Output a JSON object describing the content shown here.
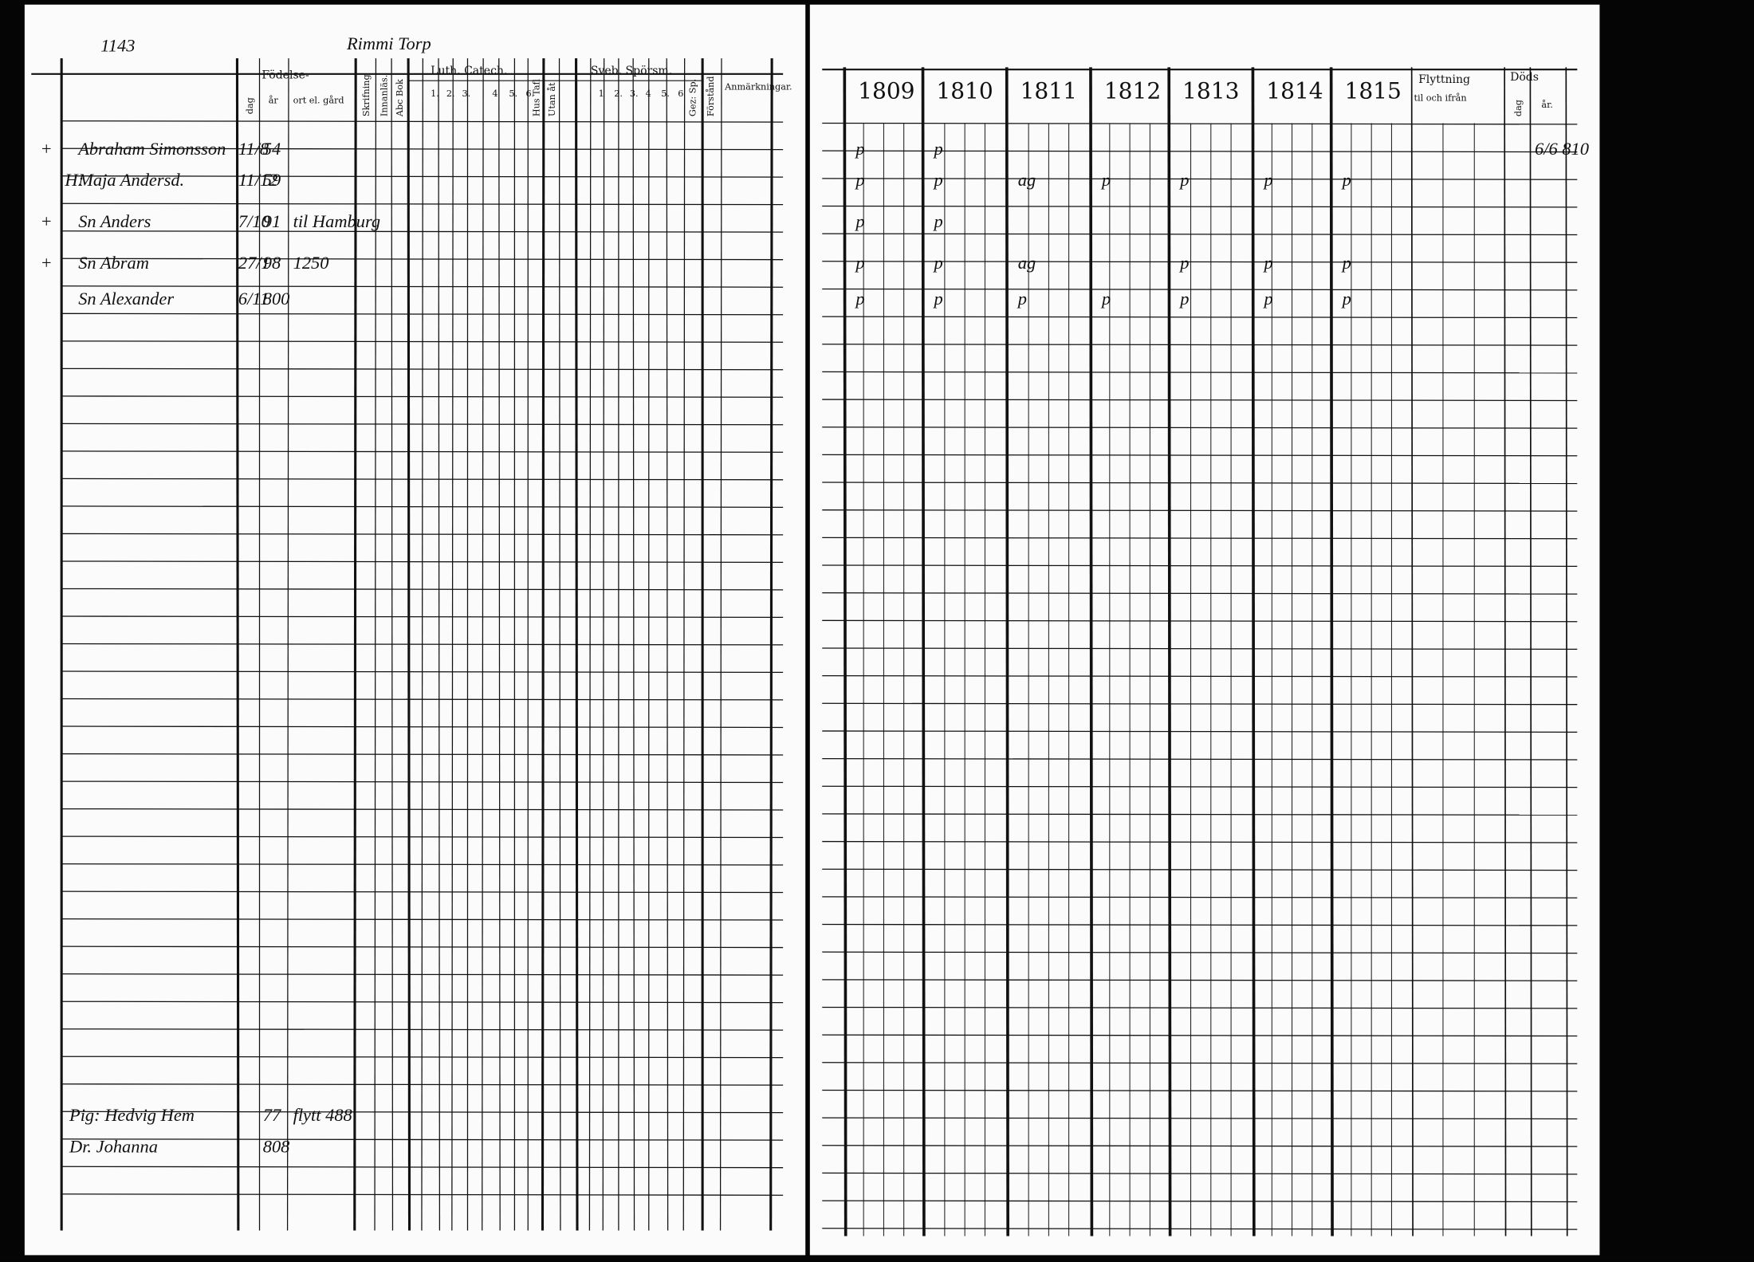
{
  "header": {
    "page_number": "1143",
    "place": "Rimmi Torp"
  },
  "left_headers": {
    "birth": "Födelse-",
    "day": "dag",
    "year": "år",
    "place": "ort el. gård",
    "writing": "Skrifning",
    "reading": "Innanläs.",
    "abc": "Abc Bok",
    "luther": "Luth. Catech.",
    "luther_parts": [
      "1.",
      "2.",
      "3.",
      "4",
      "5.",
      "6."
    ],
    "house_table": "Hus Tafl",
    "by_heart": "Utan åt",
    "questions": "Sveb. Spörsm.",
    "question_parts": [
      "1",
      "2.",
      "3.",
      "4",
      "5.",
      "6"
    ],
    "general": "Gez: Sp.",
    "understanding": "Förstånd",
    "remarks": "Anmärkningar."
  },
  "right_headers": {
    "years": [
      "1809",
      "1810",
      "1811",
      "1812",
      "1813",
      "1814",
      "1815"
    ],
    "moving": "Flyttning",
    "moving_sub": "til och ifrån",
    "death": "Döds",
    "death_day": "dag",
    "death_year": "år."
  },
  "rows": [
    {
      "mark": "+",
      "name": "Abraham Simonsson",
      "birth_day": "11/8",
      "birth_year": "54",
      "entries": {
        "1809": "p",
        "1810": "p"
      },
      "death": "6/6 810"
    },
    {
      "mark": "H:",
      "name": "Maja Andersd.",
      "birth_day": "11/12",
      "birth_year": "59",
      "entries": {
        "1809": "p",
        "1810": "p",
        "1811": "ag",
        "1812": "p",
        "1813": "p",
        "1814": "p",
        "1815": "p"
      }
    },
    {
      "mark": "+",
      "name": "Sn Anders",
      "birth_day": "7/10",
      "birth_year": "91",
      "birth_place": "til Hamburg",
      "entries": {
        "1809": "p",
        "1810": "p"
      }
    },
    {
      "mark": "+",
      "name": "Sn Abram",
      "birth_day": "27/1",
      "birth_year": "98",
      "birth_place": "1250",
      "entries": {
        "1809": "p",
        "1810": "p",
        "1811": "ag",
        "1813": "p",
        "1814": "p",
        "1815": "p"
      }
    },
    {
      "name": "Sn Alexander",
      "birth_day": "6/11",
      "birth_year": "800",
      "entries": {
        "1809": "p",
        "1810": "p",
        "1811": "p",
        "1812": "p",
        "1813": "p",
        "1814": "p",
        "1815": "p"
      }
    }
  ],
  "bottom_rows": [
    {
      "name": "Pig: Hedvig Hem",
      "birth_year": "77",
      "birth_place": "flytt 488"
    },
    {
      "name": "Dr. Johanna",
      "birth_year": "808"
    }
  ]
}
